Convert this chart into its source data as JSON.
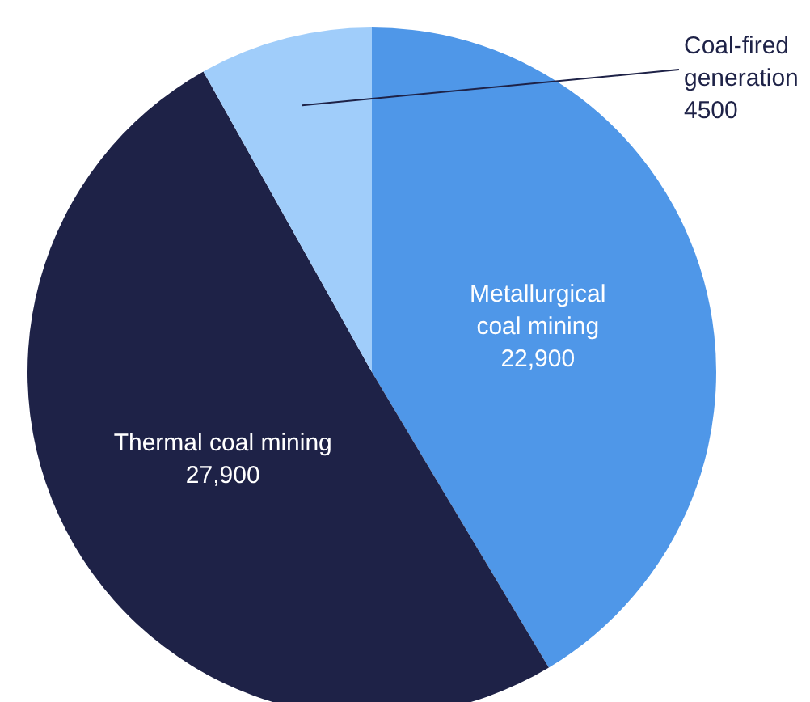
{
  "chart_data": {
    "type": "pie",
    "categories": [
      "Metallurgical coal mining",
      "Thermal coal mining",
      "Coal-fired generation"
    ],
    "values": [
      22900,
      27900,
      4500
    ],
    "colors": [
      "#4f97e8",
      "#1e2247",
      "#a0cdfa"
    ],
    "value_labels": [
      "22,900",
      "27,900",
      "4500"
    ]
  }
}
